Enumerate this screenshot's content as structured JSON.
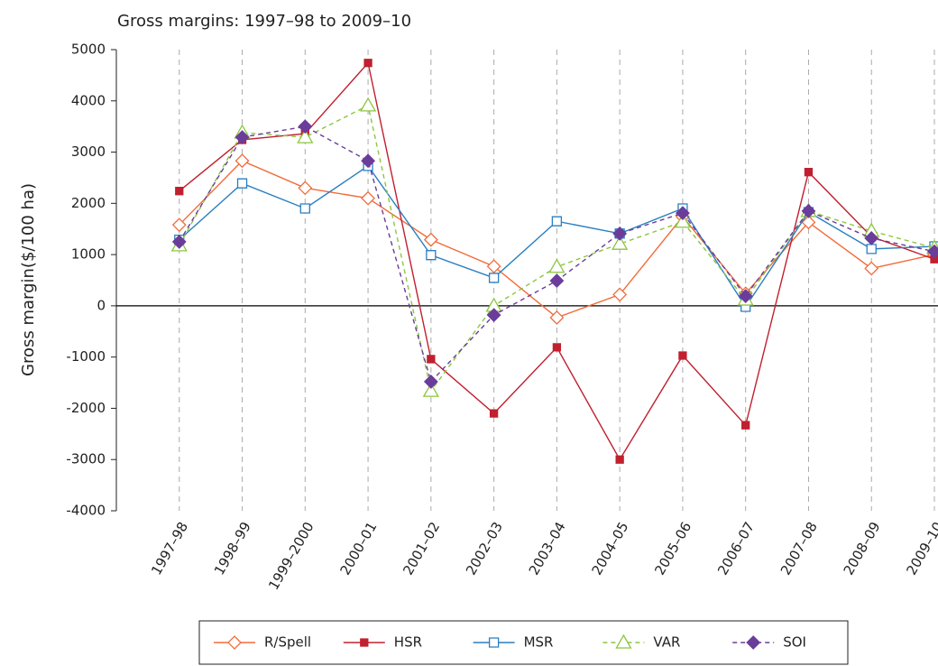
{
  "chart_data": {
    "type": "line",
    "title": "Gross margins: 1997–98 to 2009–10",
    "y_label": "Gross margin($/100 ha)",
    "categories": [
      "1997–98",
      "1998–99",
      "1999–2000",
      "2000–01",
      "2001–02",
      "2002–03",
      "2003–04",
      "2004–05",
      "2005–06",
      "2006–07",
      "2007–08",
      "2008–09",
      "2009–10"
    ],
    "ylim": [
      -4000,
      5000
    ],
    "yticks": [
      -4000,
      -3000,
      -2000,
      -1000,
      0,
      1000,
      2000,
      3000,
      4000,
      5000
    ],
    "grid": true,
    "legend": "bottom",
    "series": [
      {
        "name": "R/Spell",
        "color": "#f26b3a",
        "marker": "diamond",
        "filled": false,
        "dashed": false,
        "values": [
          1580,
          2830,
          2300,
          2100,
          1290,
          770,
          -230,
          220,
          1740,
          240,
          1630,
          730,
          1000
        ]
      },
      {
        "name": "HSR",
        "color": "#c0202f",
        "marker": "square",
        "filled": true,
        "dashed": false,
        "values": [
          2240,
          3240,
          3360,
          4740,
          -1040,
          -2100,
          -810,
          -3000,
          -970,
          -2330,
          2610,
          1350,
          910
        ]
      },
      {
        "name": "MSR",
        "color": "#2a7fc1",
        "marker": "square",
        "filled": false,
        "dashed": false,
        "values": [
          1290,
          2390,
          1900,
          2730,
          990,
          545,
          1650,
          1410,
          1900,
          -20,
          1830,
          1110,
          1160
        ]
      },
      {
        "name": "VAR",
        "color": "#8cc63f",
        "marker": "triangle",
        "filled": false,
        "dashed": true,
        "values": [
          1180,
          3380,
          3290,
          3910,
          -1660,
          0,
          760,
          1210,
          1640,
          120,
          1850,
          1460,
          1130
        ]
      },
      {
        "name": "SOI",
        "color": "#6a3d9a",
        "marker": "diamond",
        "filled": true,
        "dashed": true,
        "values": [
          1250,
          3290,
          3500,
          2830,
          -1480,
          -180,
          490,
          1410,
          1810,
          190,
          1850,
          1320,
          1060
        ]
      }
    ]
  }
}
